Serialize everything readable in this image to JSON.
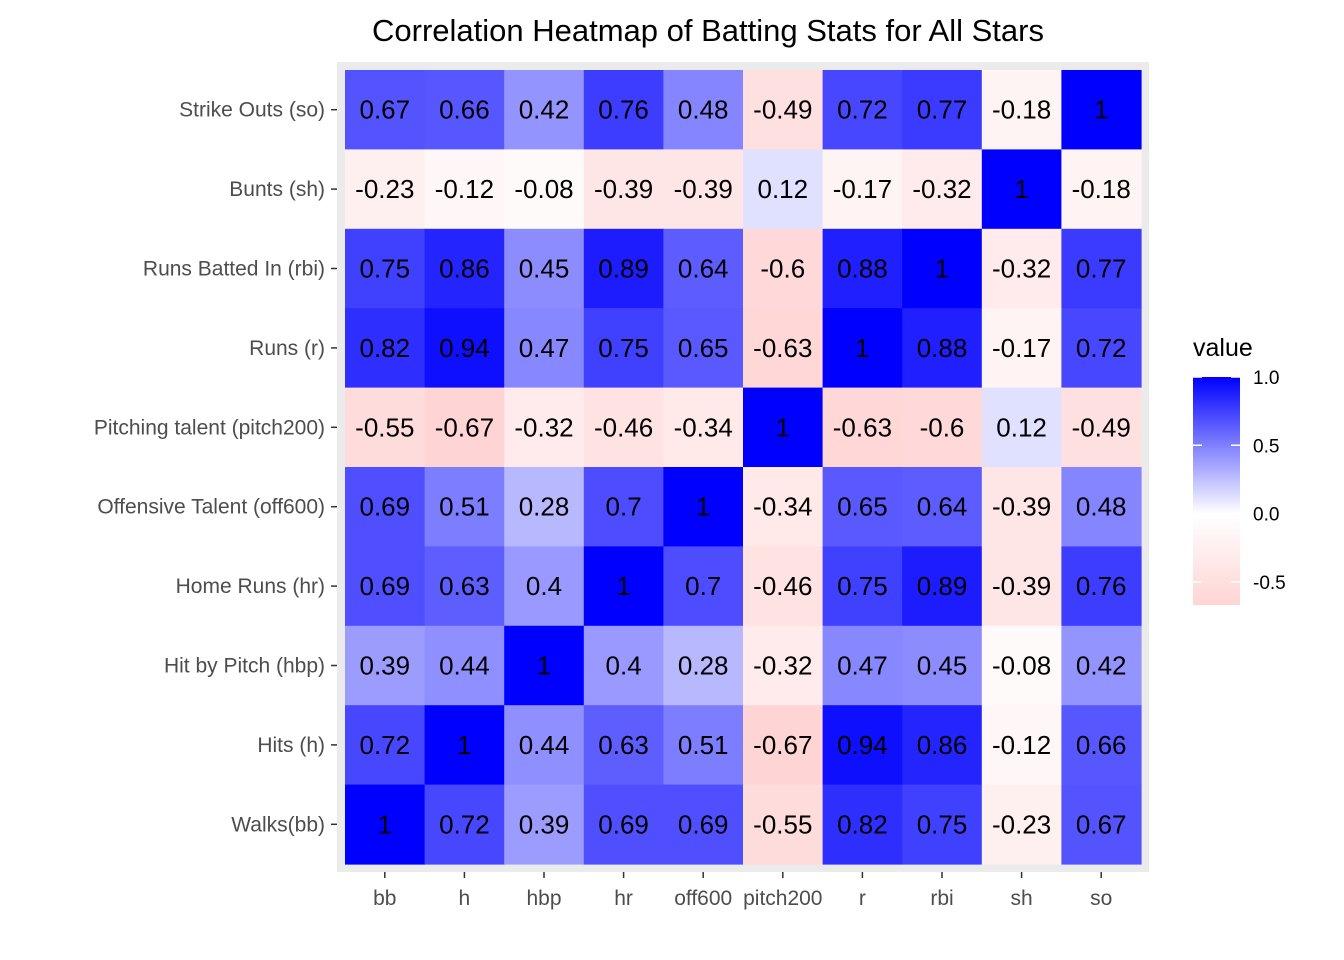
{
  "chart_data": {
    "type": "heatmap",
    "title": "Correlation Heatmap of Batting Stats for All Stars",
    "x_categories": [
      "bb",
      "h",
      "hbp",
      "hr",
      "off600",
      "pitch200",
      "r",
      "rbi",
      "sh",
      "so"
    ],
    "y_categories_top_to_bottom": [
      "Strike Outs (so)",
      "Bunts (sh)",
      "Runs Batted In (rbi)",
      "Runs (r)",
      "Pitching talent (pitch200)",
      "Offensive Talent (off600)",
      "Home Runs (hr)",
      "Hit by Pitch (hbp)",
      "Hits (h)",
      "Walks(bb)"
    ],
    "values": [
      [
        0.67,
        0.66,
        0.42,
        0.76,
        0.48,
        -0.49,
        0.72,
        0.77,
        -0.18,
        1
      ],
      [
        -0.23,
        -0.12,
        -0.08,
        -0.39,
        -0.39,
        0.12,
        -0.17,
        -0.32,
        1,
        -0.18
      ],
      [
        0.75,
        0.86,
        0.45,
        0.89,
        0.64,
        -0.6,
        0.88,
        1,
        -0.32,
        0.77
      ],
      [
        0.82,
        0.94,
        0.47,
        0.75,
        0.65,
        -0.63,
        1,
        0.88,
        -0.17,
        0.72
      ],
      [
        -0.55,
        -0.67,
        -0.32,
        -0.46,
        -0.34,
        1,
        -0.63,
        -0.6,
        0.12,
        -0.49
      ],
      [
        0.69,
        0.51,
        0.28,
        0.7,
        1,
        -0.34,
        0.65,
        0.64,
        -0.39,
        0.48
      ],
      [
        0.69,
        0.63,
        0.4,
        1,
        0.7,
        -0.46,
        0.75,
        0.89,
        -0.39,
        0.76
      ],
      [
        0.39,
        0.44,
        1,
        0.4,
        0.28,
        -0.32,
        0.47,
        0.45,
        -0.08,
        0.42
      ],
      [
        0.72,
        1,
        0.44,
        0.63,
        0.51,
        -0.67,
        0.94,
        0.86,
        -0.12,
        0.66
      ],
      [
        1,
        0.72,
        0.39,
        0.69,
        0.69,
        -0.55,
        0.82,
        0.75,
        -0.23,
        0.67
      ]
    ],
    "cell_labels": [
      [
        "0.67",
        "0.66",
        "0.42",
        "0.76",
        "0.48",
        "-0.49",
        "0.72",
        "0.77",
        "-0.18",
        "1"
      ],
      [
        "-0.23",
        "-0.12",
        "-0.08",
        "-0.39",
        "-0.39",
        "0.12",
        "-0.17",
        "-0.32",
        "1",
        "-0.18"
      ],
      [
        "0.75",
        "0.86",
        "0.45",
        "0.89",
        "0.64",
        "-0.6",
        "0.88",
        "1",
        "-0.32",
        "0.77"
      ],
      [
        "0.82",
        "0.94",
        "0.47",
        "0.75",
        "0.65",
        "-0.63",
        "1",
        "0.88",
        "-0.17",
        "0.72"
      ],
      [
        "-0.55",
        "-0.67",
        "-0.32",
        "-0.46",
        "-0.34",
        "1",
        "-0.63",
        "-0.6",
        "0.12",
        "-0.49"
      ],
      [
        "0.69",
        "0.51",
        "0.28",
        "0.7",
        "1",
        "-0.34",
        "0.65",
        "0.64",
        "-0.39",
        "0.48"
      ],
      [
        "0.69",
        "0.63",
        "0.4",
        "1",
        "0.7",
        "-0.46",
        "0.75",
        "0.89",
        "-0.39",
        "0.76"
      ],
      [
        "0.39",
        "0.44",
        "1",
        "0.4",
        "0.28",
        "-0.32",
        "0.47",
        "0.45",
        "-0.08",
        "0.42"
      ],
      [
        "0.72",
        "1",
        "0.44",
        "0.63",
        "0.51",
        "-0.67",
        "0.94",
        "0.86",
        "-0.12",
        "0.66"
      ],
      [
        "1",
        "0.72",
        "0.39",
        "0.69",
        "0.69",
        "-0.55",
        "0.82",
        "0.75",
        "-0.23",
        "0.67"
      ]
    ],
    "legend": {
      "title": "value",
      "ticks": [
        1.0,
        0.5,
        0.0,
        -0.5
      ],
      "tick_labels": [
        "1.0",
        "0.5",
        "0.0",
        "-0.5"
      ],
      "range": [
        -0.67,
        1.0
      ],
      "placement": "right"
    },
    "color_scale": {
      "low": "#ff0000",
      "mid": "#ffffff",
      "high": "#0000ff",
      "midpoint": 0
    },
    "panel_background": "#ebebeb",
    "tick_color": "#333333",
    "grid": false
  }
}
